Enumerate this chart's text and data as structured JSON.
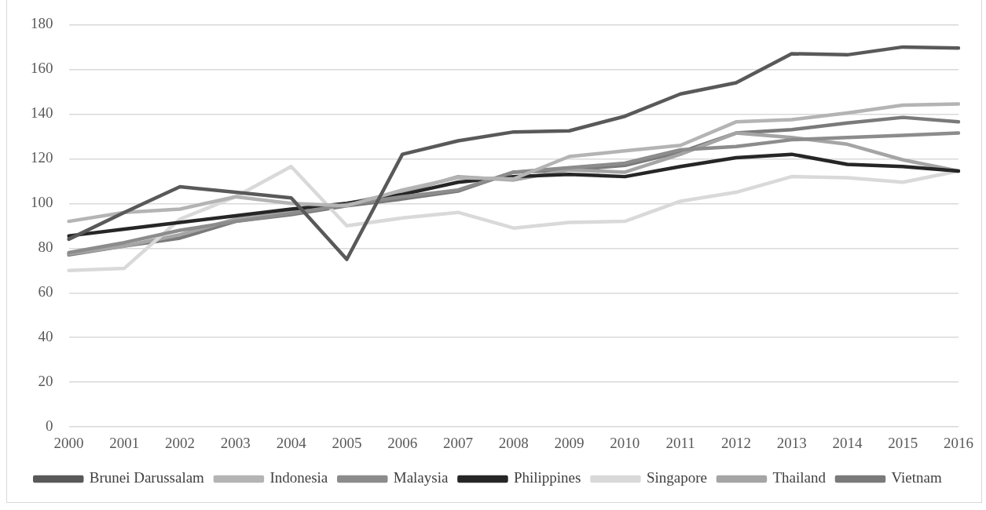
{
  "chart_data": {
    "type": "line",
    "categories": [
      "2000",
      "2001",
      "2002",
      "2003",
      "2004",
      "2005",
      "2006",
      "2007",
      "2008",
      "2009",
      "2010",
      "2011",
      "2012",
      "2013",
      "2014",
      "2015",
      "2016"
    ],
    "series": [
      {
        "name": "Brunei Darussalam",
        "color": "#595959",
        "values": [
          84,
          96,
          107.5,
          105,
          102.5,
          75,
          122,
          128,
          132,
          132.5,
          139,
          149,
          154,
          167,
          166.5,
          170,
          169.5
        ]
      },
      {
        "name": "Indonesia",
        "color": "#b4b4b4",
        "values": [
          92,
          96,
          97.5,
          103,
          100,
          99,
          106,
          111.5,
          111,
          121,
          123.5,
          126,
          136.5,
          137.5,
          140.5,
          144,
          144.5
        ]
      },
      {
        "name": "Malaysia",
        "color": "#8c8c8c",
        "values": [
          78,
          82.5,
          88,
          92,
          95.5,
          99.5,
          103,
          106,
          114,
          116,
          118,
          124,
          125.5,
          128.5,
          129.5,
          130.5,
          131.5
        ]
      },
      {
        "name": "Philippines",
        "color": "#262626",
        "values": [
          85.5,
          88.5,
          91.5,
          94.5,
          97.5,
          100,
          104,
          109.5,
          112,
          113,
          112,
          116.5,
          120.5,
          122,
          117.5,
          116.5,
          114.5
        ]
      },
      {
        "name": "Singapore",
        "color": "#d9d9d9",
        "values": [
          70,
          71,
          93,
          103,
          116.5,
          90,
          93.5,
          96,
          89,
          91.5,
          92,
          101,
          105,
          112,
          111.5,
          109.5,
          114.5
        ]
      },
      {
        "name": "Thailand",
        "color": "#a5a5a5",
        "values": [
          77.5,
          81,
          86,
          93,
          96,
          100,
          105,
          112,
          110.5,
          115,
          114,
          122,
          131.5,
          129.5,
          126.5,
          119.5,
          114.5
        ]
      },
      {
        "name": "Vietnam",
        "color": "#7a7a7a",
        "values": [
          77,
          81,
          84.5,
          92,
          95,
          99,
          102,
          105.5,
          114,
          115,
          117,
          123,
          131.5,
          133,
          136,
          138.5,
          136.5
        ]
      }
    ],
    "ylim": [
      0,
      180
    ],
    "yticks": [
      0,
      20,
      40,
      60,
      80,
      100,
      120,
      140,
      160,
      180
    ],
    "grid": "y",
    "legend": "bottom",
    "marker": "none",
    "line_style": "solid"
  }
}
